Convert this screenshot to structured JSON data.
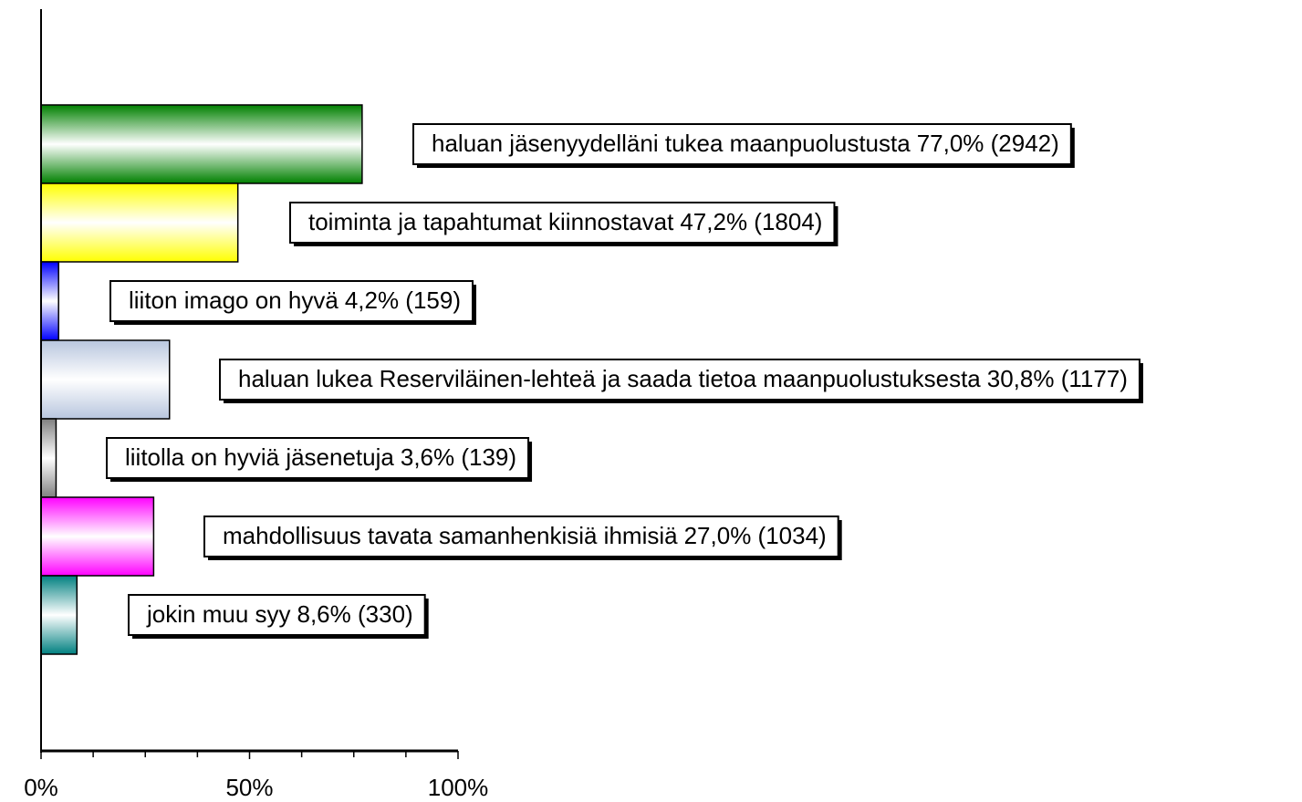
{
  "chart_data": {
    "type": "barh",
    "categories": [
      "haluan jäsenyydelläni tukea maanpuolustusta",
      "toiminta ja tapahtumat kiinnostavat",
      "liiton imago on hyvä",
      "haluan lukea Reserviläinen-lehteä ja saada tietoa maanpuolustuksesta",
      "liitolla on hyviä jäsenetuja",
      "mahdollisuus tavata samanhenkisiä ihmisiä",
      "jokin muu syy"
    ],
    "values": [
      77.0,
      47.2,
      4.2,
      30.8,
      3.6,
      27.0,
      8.6
    ],
    "value_labels": [
      "77,0% (2942)",
      "47,2% (1804)",
      "4,2% (159)",
      "30,8% (1177)",
      "3,6% (139)",
      "27,0% (1034)",
      "8,6% (330)"
    ],
    "colors": [
      "#008000",
      "#ffff00",
      "#0000ff",
      "#b8c6de",
      "#808080",
      "#ff00ff",
      "#008080"
    ],
    "xlim": [
      0,
      100
    ],
    "xticks": [
      {
        "value": 0,
        "label": "0%"
      },
      {
        "value": 50,
        "label": "50%"
      },
      {
        "value": 100,
        "label": "100%"
      }
    ],
    "minor_xticks": [
      12.5,
      25,
      37.5,
      62.5,
      75,
      87.5
    ]
  }
}
